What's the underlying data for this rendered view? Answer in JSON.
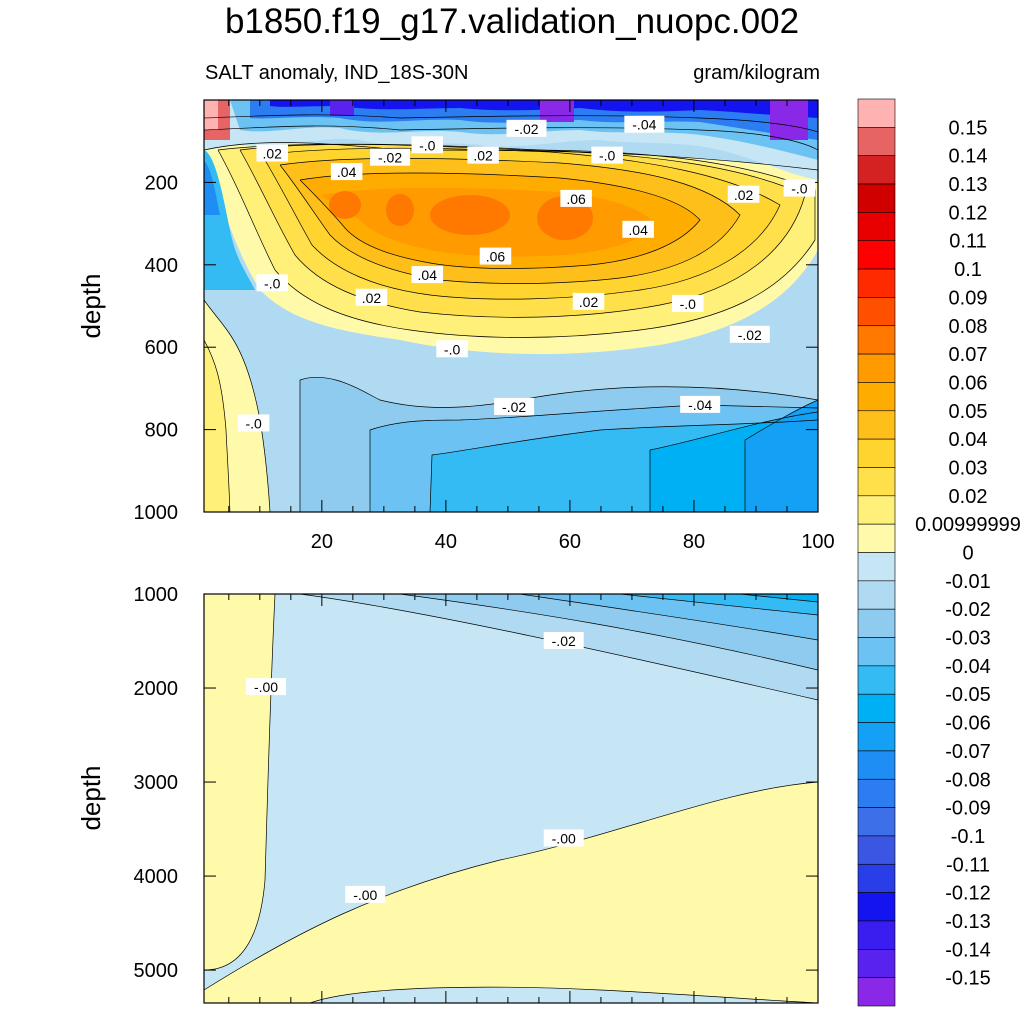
{
  "title": "b1850.f19_g17.validation_nuopc.002",
  "subtitle_left": "SALT anomaly, IND_18S-30N",
  "subtitle_right": "gram/kilogram",
  "chart_data": {
    "type": "heatmap",
    "panels": [
      {
        "name": "upper",
        "ylabel": "depth",
        "xlim": [
          1,
          100
        ],
        "ylim": [
          1000,
          0
        ],
        "x_ticks": [
          "20",
          "40",
          "60",
          "80",
          "100"
        ],
        "y_ticks": [
          "200",
          "400",
          "600",
          "800",
          "1000"
        ],
        "contour_labels": [
          {
            "text": ".02",
            "x": 12,
            "y": 130
          },
          {
            "text": "-.02",
            "x": 31,
            "y": 140
          },
          {
            "text": "-.0",
            "x": 37,
            "y": 110
          },
          {
            "text": ".02",
            "x": 46,
            "y": 135
          },
          {
            "text": "-.02",
            "x": 53,
            "y": 70
          },
          {
            "text": "-.0",
            "x": 66,
            "y": 135
          },
          {
            "text": "-.04",
            "x": 72,
            "y": 60
          },
          {
            "text": ".04",
            "x": 24,
            "y": 175
          },
          {
            "text": ".06",
            "x": 61,
            "y": 240
          },
          {
            "text": ".02",
            "x": 88,
            "y": 230
          },
          {
            "text": "-.0",
            "x": 97,
            "y": 215
          },
          {
            "text": ".04",
            "x": 71,
            "y": 315
          },
          {
            "text": ".06",
            "x": 48,
            "y": 380
          },
          {
            "text": ".04",
            "x": 37,
            "y": 425
          },
          {
            "text": "-.0",
            "x": 12,
            "y": 445
          },
          {
            "text": ".02",
            "x": 28,
            "y": 480
          },
          {
            "text": ".02",
            "x": 63,
            "y": 490
          },
          {
            "text": "-.0",
            "x": 79,
            "y": 495
          },
          {
            "text": "-.02",
            "x": 89,
            "y": 570
          },
          {
            "text": "-.0",
            "x": 41,
            "y": 605
          },
          {
            "text": "-.02",
            "x": 51,
            "y": 745
          },
          {
            "text": "-.04",
            "x": 81,
            "y": 740
          },
          {
            "text": "-.0",
            "x": 9,
            "y": 785
          }
        ]
      },
      {
        "name": "lower",
        "ylabel": "depth",
        "xlim": [
          1,
          100
        ],
        "ylim": [
          5350,
          1000
        ],
        "y_ticks": [
          "1000",
          "2000",
          "3000",
          "4000",
          "5000"
        ],
        "contour_labels": [
          {
            "text": "-.02",
            "x": 59,
            "y": 1500
          },
          {
            "text": "-.00",
            "x": 11,
            "y": 1990
          },
          {
            "text": "-.00",
            "x": 59,
            "y": 3600
          },
          {
            "text": "-.00",
            "x": 27,
            "y": 4200
          }
        ]
      }
    ],
    "colorbar": {
      "labels": [
        "0.15",
        "0.14",
        "0.13",
        "0.12",
        "0.11",
        "0.1",
        "0.09",
        "0.08",
        "0.07",
        "0.06",
        "0.05",
        "0.04",
        "0.03",
        "0.02",
        "0.00999999",
        "0",
        "-0.01",
        "-0.02",
        "-0.03",
        "-0.04",
        "-0.05",
        "-0.06",
        "-0.07",
        "-0.08",
        "-0.09",
        "-0.1",
        "-0.11",
        "-0.12",
        "-0.13",
        "-0.14",
        "-0.15"
      ],
      "colors": [
        "#ffb2b2",
        "#e76464",
        "#d42222",
        "#d00000",
        "#e80000",
        "#ff0000",
        "#ff2a00",
        "#ff5000",
        "#ff7800",
        "#ff9a00",
        "#ffac00",
        "#ffbf1a",
        "#ffd42e",
        "#ffe04a",
        "#fff07a",
        "#fff9aa",
        "#c6e6f5",
        "#afdaf2",
        "#8ecbee",
        "#6cc3f3",
        "#35bbf3",
        "#00b0f5",
        "#14a0f5",
        "#1e8ef5",
        "#2c7cf2",
        "#3d6fe9",
        "#3a56e2",
        "#2a3ee8",
        "#1414f0",
        "#3a1ef0",
        "#5a22ee",
        "#8a28e8"
      ]
    }
  }
}
